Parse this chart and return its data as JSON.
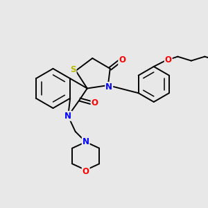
{
  "bg_color": "#e8e8e8",
  "fig_size": [
    3.0,
    3.0
  ],
  "dpi": 100,
  "atom_colors": {
    "C": "#000000",
    "N": "#0000ff",
    "O": "#ff0000",
    "S": "#b8b800"
  },
  "bond_color": "#000000",
  "bond_width": 1.4,
  "font_size_atom": 8.5
}
